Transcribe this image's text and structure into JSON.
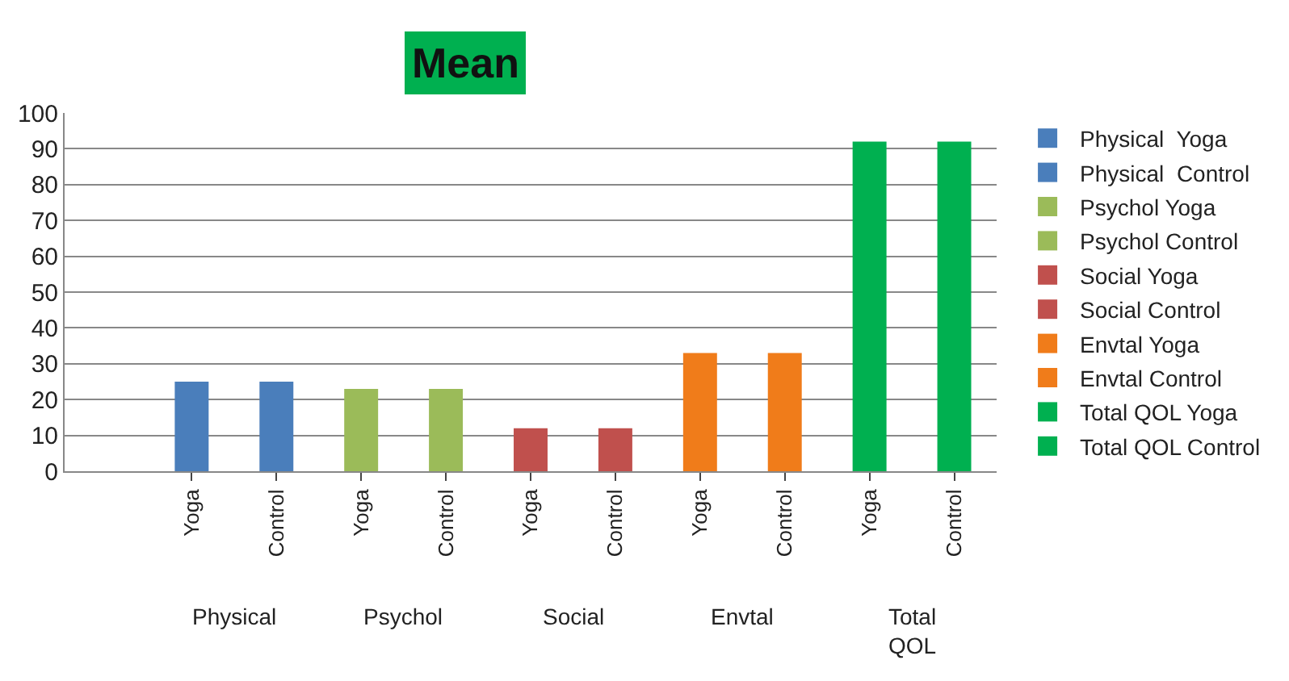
{
  "chart_data": {
    "type": "bar",
    "title": "Mean",
    "categories": [
      "Yoga",
      "Control",
      "Yoga",
      "Control",
      "Yoga",
      "Control",
      "Yoga",
      "Control",
      "Yoga",
      "Control"
    ],
    "series": [
      {
        "name": "Physical  Yoga",
        "color": "#4a7ebb",
        "values": [
          25,
          null,
          null,
          null,
          null,
          null,
          null,
          null,
          null,
          null
        ]
      },
      {
        "name": "Physical  Control",
        "color": "#4a7ebb",
        "values": [
          null,
          25,
          null,
          null,
          null,
          null,
          null,
          null,
          null,
          null
        ]
      },
      {
        "name": "Psychol Yoga",
        "color": "#9bbb59",
        "values": [
          null,
          null,
          23,
          null,
          null,
          null,
          null,
          null,
          null,
          null
        ]
      },
      {
        "name": "Psychol Control",
        "color": "#9bbb59",
        "values": [
          null,
          null,
          null,
          23,
          null,
          null,
          null,
          null,
          null,
          null
        ]
      },
      {
        "name": "Social Yoga",
        "color": "#c0504d",
        "values": [
          null,
          null,
          null,
          null,
          12,
          null,
          null,
          null,
          null,
          null
        ]
      },
      {
        "name": "Social Control",
        "color": "#c0504d",
        "values": [
          null,
          null,
          null,
          null,
          null,
          12,
          null,
          null,
          null,
          null
        ]
      },
      {
        "name": "Envtal Yoga",
        "color": "#f07c1a",
        "values": [
          null,
          null,
          null,
          null,
          null,
          null,
          33,
          null,
          null,
          null
        ]
      },
      {
        "name": "Envtal Control",
        "color": "#f07c1a",
        "values": [
          null,
          null,
          null,
          null,
          null,
          null,
          null,
          33,
          null,
          null
        ]
      },
      {
        "name": "Total QOL Yoga",
        "color": "#00b050",
        "values": [
          null,
          null,
          null,
          null,
          null,
          null,
          null,
          null,
          92,
          null
        ]
      },
      {
        "name": "Total QOL Control",
        "color": "#00b050",
        "values": [
          null,
          null,
          null,
          null,
          null,
          null,
          null,
          null,
          null,
          92
        ]
      }
    ],
    "annotations": [
      "Physical",
      "Psychol",
      "Social",
      "Envtal",
      "Total\nQOL"
    ],
    "ylim": [
      0,
      100
    ],
    "yticks": [
      0,
      10,
      20,
      30,
      40,
      50,
      60,
      70,
      80,
      90,
      100
    ],
    "grid": "y",
    "legend": "right"
  }
}
